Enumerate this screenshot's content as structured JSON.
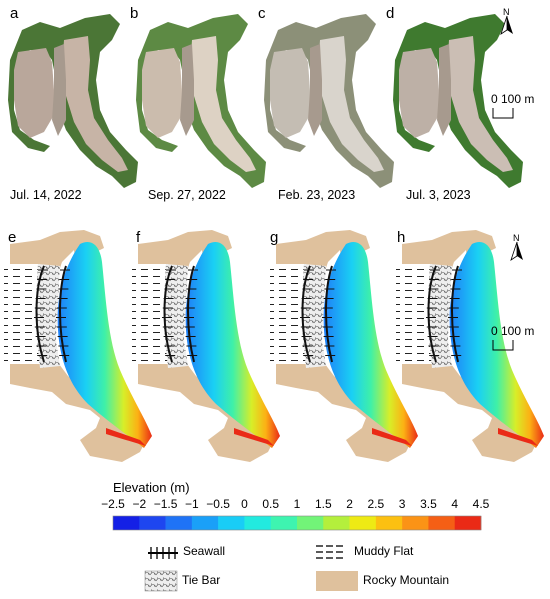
{
  "top_row": {
    "panels": [
      {
        "letter": "a",
        "date": "Jul. 14, 2022"
      },
      {
        "letter": "b",
        "date": "Sep. 27, 2022"
      },
      {
        "letter": "c",
        "date": "Feb. 23, 2023"
      },
      {
        "letter": "d",
        "date": "Jul. 3, 2023"
      }
    ]
  },
  "bottom_row": {
    "panels": [
      {
        "letter": "e"
      },
      {
        "letter": "f"
      },
      {
        "letter": "g"
      },
      {
        "letter": "h"
      }
    ]
  },
  "north_label": "N",
  "scale_bar": {
    "label": "0 100 m"
  },
  "legend": {
    "title": "Elevation (m)",
    "ticks": [
      "−2.5",
      "−2",
      "−1.5",
      "−1",
      "−0.5",
      "0",
      "0.5",
      "1",
      "1.5",
      "2",
      "2.5",
      "3",
      "3.5",
      "4",
      "4.5"
    ],
    "colors": [
      "#1420e6",
      "#1e46f0",
      "#1f73f6",
      "#1aa0f8",
      "#19cdf6",
      "#22eadf",
      "#3ef4b0",
      "#72f478",
      "#b4ef3c",
      "#eeea14",
      "#fcc011",
      "#fb9316",
      "#f55f15",
      "#ea2a16"
    ],
    "keys": {
      "seawall": "Seawall",
      "muddy_flat": "Muddy Flat",
      "tie_bar": "Tie Bar",
      "rocky_mountain": "Rocky Mountain"
    }
  },
  "colors": {
    "rocky": "#dfc19d",
    "sand_photo": "#c9b7a9",
    "vegetation": "#4c7a3a"
  }
}
